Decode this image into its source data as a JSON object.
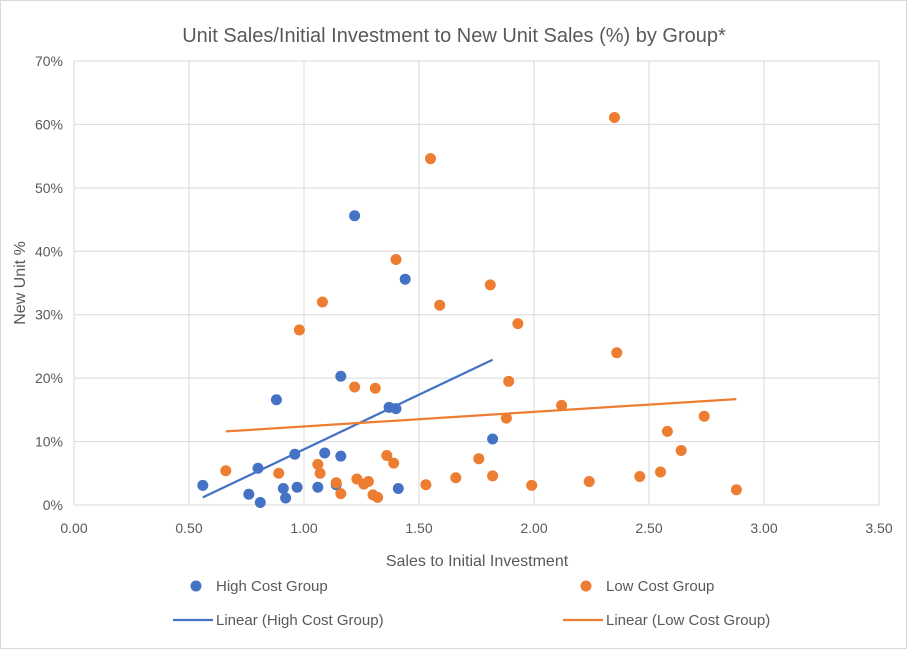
{
  "chart_data": {
    "type": "scatter",
    "title": "Unit Sales/Initial Investment to New Unit Sales (%) by Group*",
    "xlabel": "Sales to Initial Investment",
    "ylabel": "New Unit %",
    "xlim": [
      0,
      3.5
    ],
    "ylim": [
      0,
      70
    ],
    "x_ticks": [
      "0.00",
      "0.50",
      "1.00",
      "1.50",
      "2.00",
      "2.50",
      "3.00",
      "3.50"
    ],
    "y_ticks": [
      "0%",
      "10%",
      "20%",
      "30%",
      "40%",
      "50%",
      "60%",
      "70%"
    ],
    "grid": true,
    "legend_position": "bottom",
    "series": [
      {
        "name": "High Cost Group",
        "color": "#4472c4",
        "points": [
          {
            "x": 0.56,
            "y": 3.1
          },
          {
            "x": 0.76,
            "y": 1.7
          },
          {
            "x": 0.8,
            "y": 5.8
          },
          {
            "x": 0.81,
            "y": 0.4
          },
          {
            "x": 0.88,
            "y": 16.6
          },
          {
            "x": 0.91,
            "y": 2.6
          },
          {
            "x": 0.92,
            "y": 1.1
          },
          {
            "x": 0.96,
            "y": 8.0
          },
          {
            "x": 0.97,
            "y": 2.8
          },
          {
            "x": 1.06,
            "y": 2.8
          },
          {
            "x": 1.09,
            "y": 8.2
          },
          {
            "x": 1.14,
            "y": 3.2
          },
          {
            "x": 1.16,
            "y": 7.7
          },
          {
            "x": 1.16,
            "y": 20.3
          },
          {
            "x": 1.22,
            "y": 45.6
          },
          {
            "x": 1.37,
            "y": 15.4
          },
          {
            "x": 1.4,
            "y": 15.2
          },
          {
            "x": 1.41,
            "y": 2.6
          },
          {
            "x": 1.44,
            "y": 35.6
          },
          {
            "x": 1.82,
            "y": 10.4
          }
        ]
      },
      {
        "name": "Low Cost Group",
        "color": "#ed7d31",
        "points": [
          {
            "x": 0.66,
            "y": 5.4
          },
          {
            "x": 0.89,
            "y": 5.0
          },
          {
            "x": 0.98,
            "y": 27.6
          },
          {
            "x": 1.06,
            "y": 6.4
          },
          {
            "x": 1.07,
            "y": 5.0
          },
          {
            "x": 1.08,
            "y": 32.0
          },
          {
            "x": 1.14,
            "y": 3.5
          },
          {
            "x": 1.16,
            "y": 1.8
          },
          {
            "x": 1.22,
            "y": 18.6
          },
          {
            "x": 1.23,
            "y": 4.1
          },
          {
            "x": 1.26,
            "y": 3.3
          },
          {
            "x": 1.28,
            "y": 3.7
          },
          {
            "x": 1.3,
            "y": 1.6
          },
          {
            "x": 1.31,
            "y": 18.4
          },
          {
            "x": 1.32,
            "y": 1.2
          },
          {
            "x": 1.36,
            "y": 7.8
          },
          {
            "x": 1.39,
            "y": 6.6
          },
          {
            "x": 1.4,
            "y": 38.7
          },
          {
            "x": 1.53,
            "y": 3.2
          },
          {
            "x": 1.55,
            "y": 54.6
          },
          {
            "x": 1.59,
            "y": 31.5
          },
          {
            "x": 1.66,
            "y": 4.3
          },
          {
            "x": 1.76,
            "y": 7.3
          },
          {
            "x": 1.81,
            "y": 34.7
          },
          {
            "x": 1.82,
            "y": 4.6
          },
          {
            "x": 1.88,
            "y": 13.7
          },
          {
            "x": 1.89,
            "y": 19.5
          },
          {
            "x": 1.93,
            "y": 28.6
          },
          {
            "x": 1.99,
            "y": 3.1
          },
          {
            "x": 2.12,
            "y": 15.7
          },
          {
            "x": 2.24,
            "y": 3.7
          },
          {
            "x": 2.35,
            "y": 61.1
          },
          {
            "x": 2.36,
            "y": 24.0
          },
          {
            "x": 2.46,
            "y": 4.5
          },
          {
            "x": 2.55,
            "y": 5.2
          },
          {
            "x": 2.58,
            "y": 11.6
          },
          {
            "x": 2.64,
            "y": 8.6
          },
          {
            "x": 2.74,
            "y": 14.0
          },
          {
            "x": 2.88,
            "y": 2.4
          }
        ]
      }
    ],
    "trendlines": [
      {
        "name": "Linear (High Cost Group)",
        "color": "#4472c4",
        "x": [
          0.56,
          1.82
        ],
        "y": [
          1.2,
          22.9
        ]
      },
      {
        "name": "Linear (Low Cost Group)",
        "color": "#ed7d31",
        "x": [
          0.66,
          2.88
        ],
        "y": [
          11.6,
          16.7
        ]
      }
    ]
  }
}
